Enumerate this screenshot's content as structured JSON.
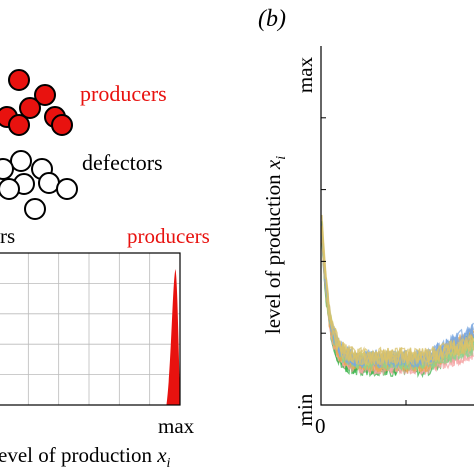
{
  "panel_b_label": "(b)",
  "schematic": {
    "producers_label": "producers",
    "defectors_label": "defectors",
    "colors": {
      "producer_fill": "#e8120f",
      "defector_fill": "#ffffff",
      "outline": "#000000"
    }
  },
  "chart_data": [
    {
      "type": "area",
      "panel": "a-bottom",
      "left_label_fragment": "rs",
      "right_label": "producers",
      "x_tick_right": "max",
      "xlabel": "level of production x_i",
      "xlabel_text": "evel of production ",
      "xlabel_var": "x",
      "xlabel_sub": "i",
      "grid": true,
      "fill_color": "#e8120f",
      "peak_x_fraction": 0.975,
      "note": ""
    },
    {
      "type": "line",
      "panel": "b",
      "ylabel_text": "level of production ",
      "ylabel_var": "x",
      "ylabel_sub": "i",
      "y_tick_top": "max",
      "y_tick_bottom": "min",
      "x_tick_left": "0",
      "grid": false,
      "series_colors": [
        "#3cb44b",
        "#f4a6a6",
        "#e8a94f",
        "#8fd18b",
        "#7aa7e0",
        "#d9c26a"
      ],
      "description_levels": {
        "initial": 0.55,
        "plateau": 0.12,
        "late_rise": 0.2
      }
    }
  ]
}
